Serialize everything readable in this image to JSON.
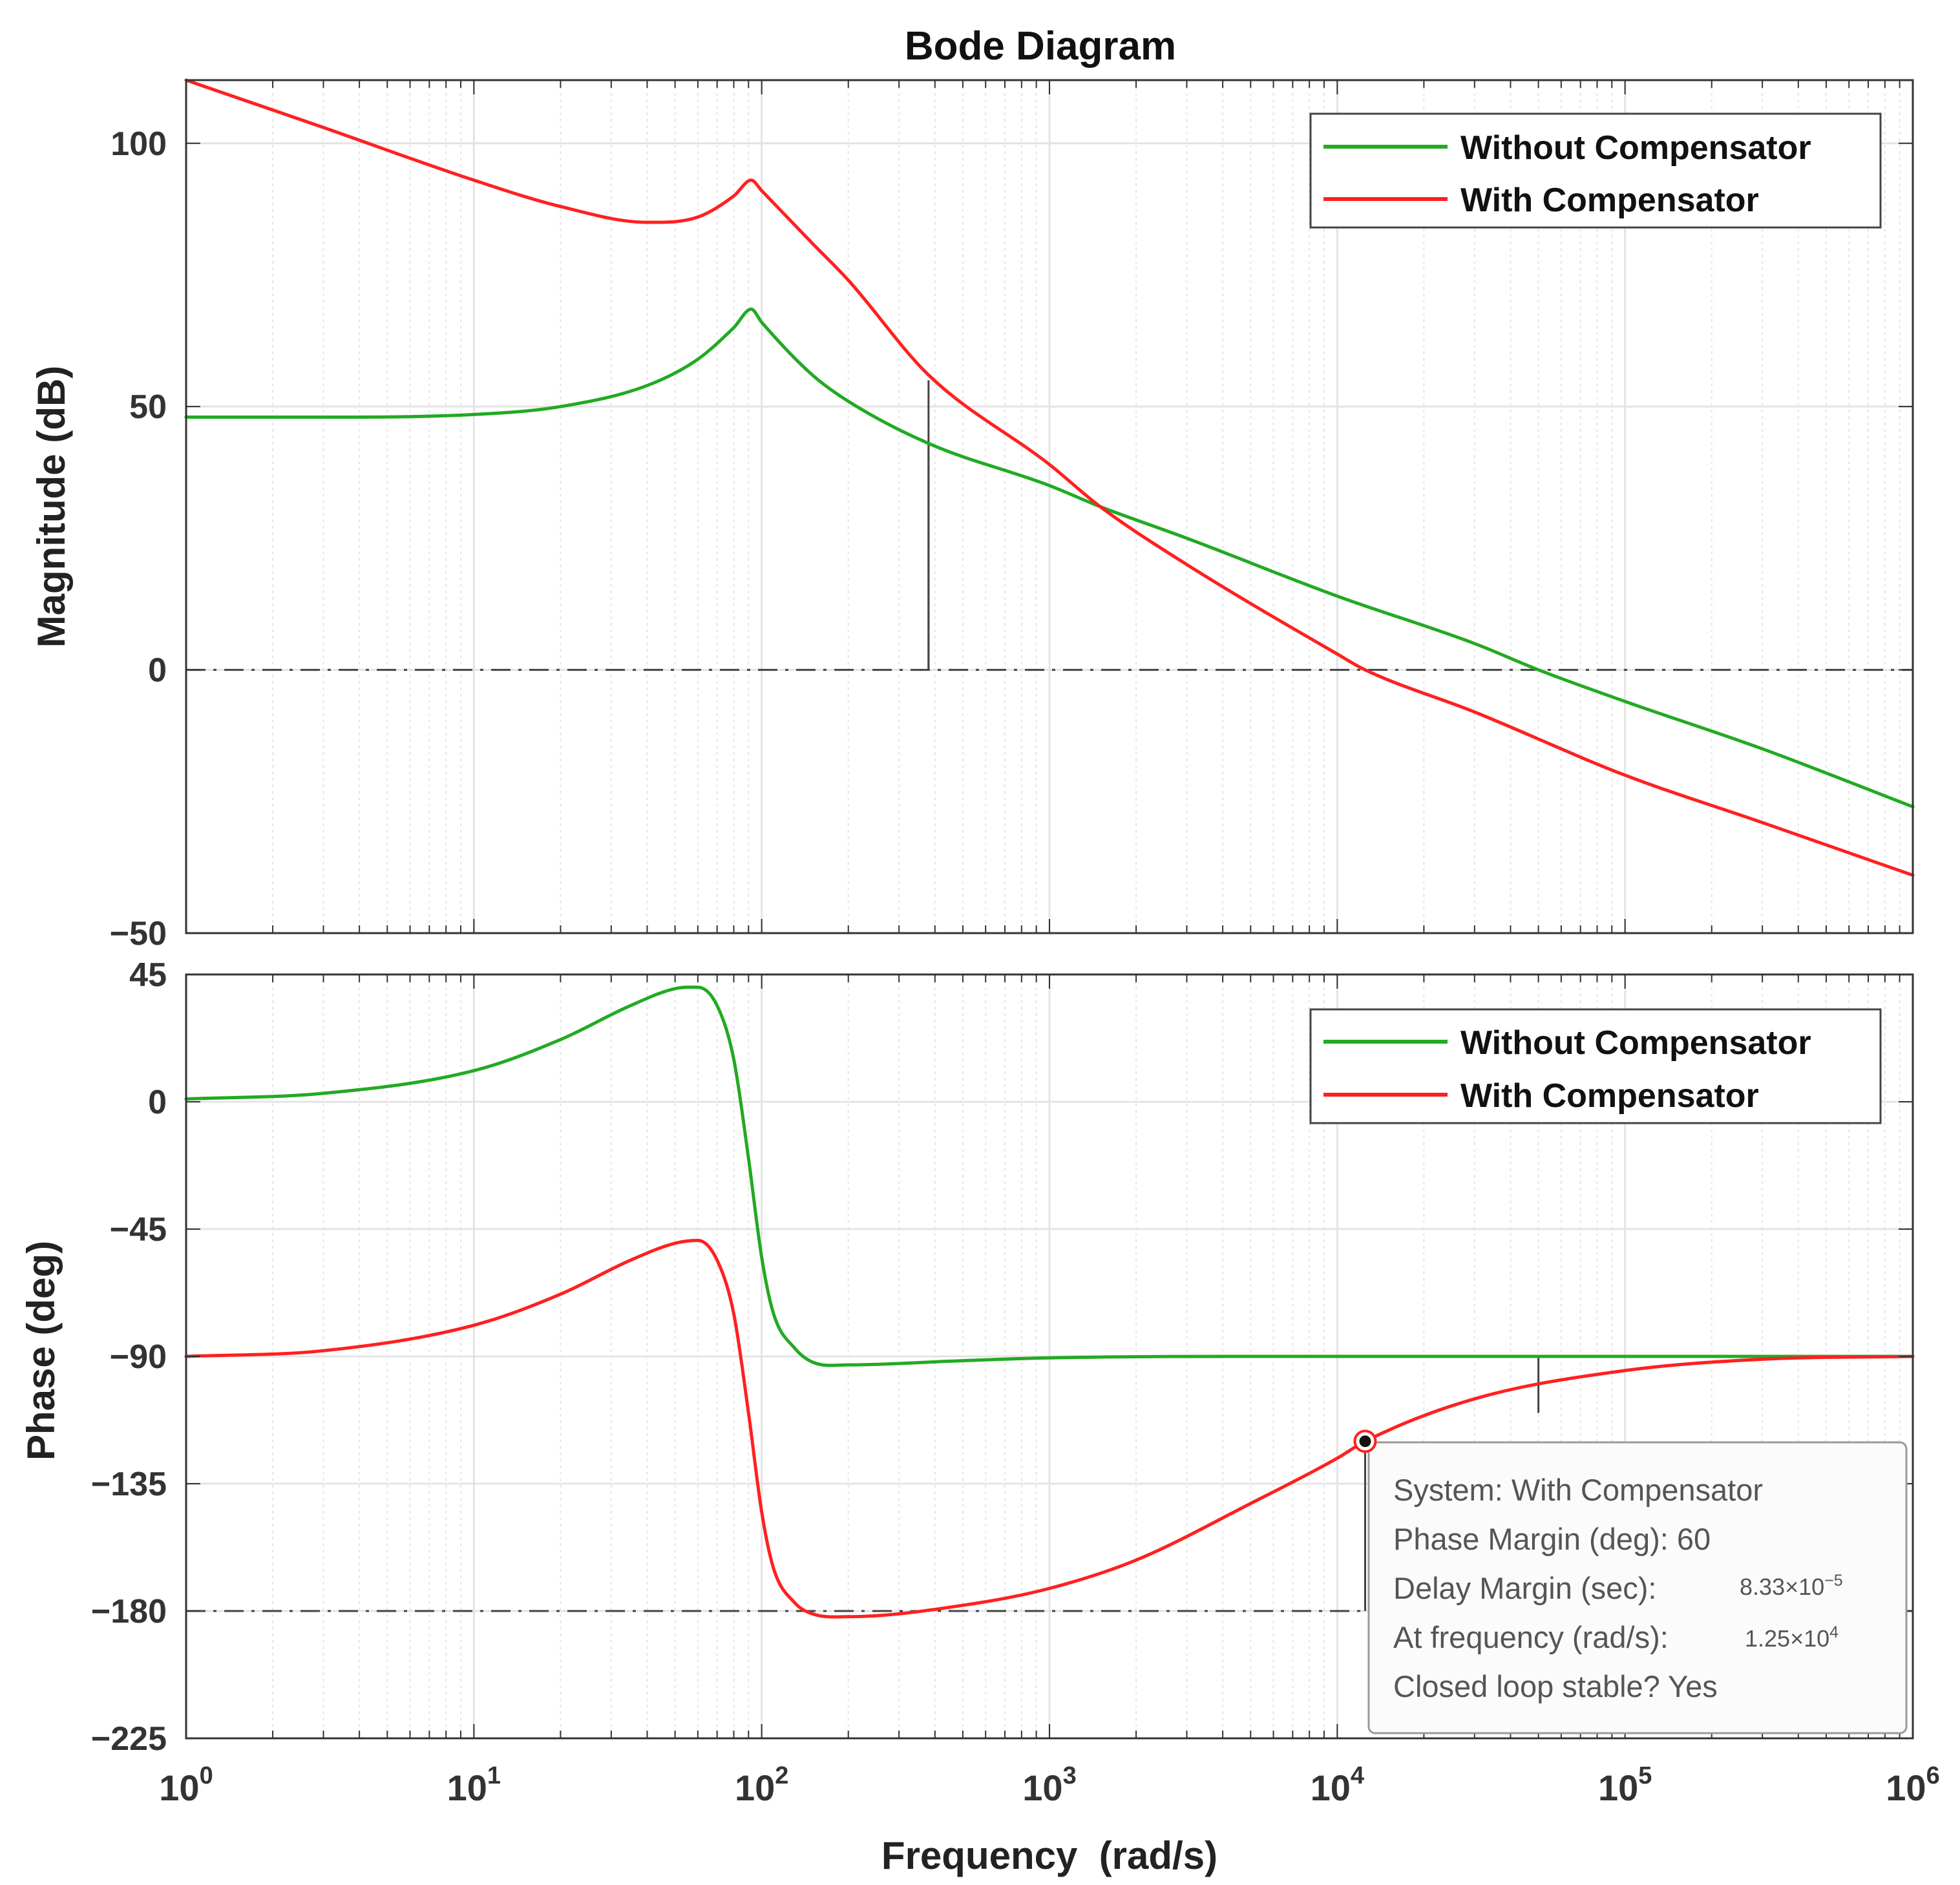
{
  "figure_title": "Bode Diagram",
  "colors": {
    "without_compensator": "#22aa22",
    "with_compensator": "#ff2020",
    "grid": "#e4e4e4",
    "axes": "#333333",
    "reference_line": "#444444",
    "datatip_border": "#9a9a9a",
    "datatip_background": "#fbfbfc"
  },
  "legend": {
    "placement": "top-right",
    "items": [
      "Without Compensator",
      "With Compensator"
    ]
  },
  "datatip": {
    "lines": [
      "System: With Compensator",
      "Phase Margin (deg): 60",
      "Delay Margin (sec):",
      "At frequency (rad/s):",
      "Closed loop stable? Yes"
    ],
    "delay_margin_mantissa": "8.33×10",
    "delay_margin_exponent": "−5",
    "frequency_mantissa": "1.25×10",
    "frequency_exponent": "4",
    "marker_frequency": 12500,
    "marker_phase": -120
  },
  "chart_data": [
    {
      "type": "line",
      "title": "Bode Diagram",
      "panel": "magnitude",
      "xlabel": "Frequency  (rad/s)",
      "ylabel": "Magnitude (dB)",
      "xscale": "log",
      "xlim": [
        1,
        1000000
      ],
      "ylim": [
        -50,
        112
      ],
      "yticks": [
        100,
        50,
        0,
        -50
      ],
      "ytick_labels": [
        "100",
        "50",
        "0",
        "−50"
      ],
      "grid": true,
      "reference_lines": [
        {
          "y": 0,
          "style": "dash-dot"
        }
      ],
      "margin_markers": [
        {
          "series": "With Compensator",
          "x": 380,
          "y_from": 55,
          "y_to": 0
        },
        {
          "series": "Without Compensator",
          "x": 380,
          "y_from": 43,
          "y_to": 0
        }
      ],
      "series": [
        {
          "name": "Without Compensator",
          "points": [
            [
              1,
              48
            ],
            [
              3,
              48
            ],
            [
              10,
              48.5
            ],
            [
              20,
              50
            ],
            [
              40,
              54
            ],
            [
              60,
              59
            ],
            [
              80,
              65
            ],
            [
              92,
              68.5
            ],
            [
              100,
              66
            ],
            [
              150,
              56
            ],
            [
              200,
              51
            ],
            [
              380,
              43
            ],
            [
              1000,
              35
            ],
            [
              1500,
              31
            ],
            [
              3000,
              25
            ],
            [
              10000,
              14
            ],
            [
              30000,
              5
            ],
            [
              50000,
              0
            ],
            [
              100000,
              -6
            ],
            [
              300000,
              -15
            ],
            [
              1000000,
              -26
            ]
          ]
        },
        {
          "name": "With Compensator",
          "points": [
            [
              1,
              112
            ],
            [
              3,
              103
            ],
            [
              10,
              93
            ],
            [
              20,
              88
            ],
            [
              40,
              85
            ],
            [
              60,
              86
            ],
            [
              80,
              90
            ],
            [
              92,
              93
            ],
            [
              100,
              91
            ],
            [
              150,
              81
            ],
            [
              200,
              74
            ],
            [
              380,
              56
            ],
            [
              1000,
              39
            ],
            [
              1500,
              31
            ],
            [
              3000,
              20
            ],
            [
              10000,
              3
            ],
            [
              12500,
              0
            ],
            [
              30000,
              -8
            ],
            [
              100000,
              -20
            ],
            [
              300000,
              -29
            ],
            [
              1000000,
              -39
            ]
          ]
        }
      ]
    },
    {
      "type": "line",
      "panel": "phase",
      "xlabel": "Frequency  (rad/s)",
      "ylabel": "Phase (deg)",
      "xscale": "log",
      "xlim": [
        1,
        1000000
      ],
      "ylim": [
        -225,
        45
      ],
      "yticks": [
        45,
        0,
        -45,
        -90,
        -135,
        -180,
        -225
      ],
      "ytick_labels": [
        "45",
        "0",
        "−45",
        "−90",
        "−135",
        "−180",
        "−225"
      ],
      "xticks": [
        1,
        10,
        100,
        1000,
        10000,
        100000,
        1000000
      ],
      "xtick_exponents": [
        "0",
        "1",
        "2",
        "3",
        "4",
        "5",
        "6"
      ],
      "grid": true,
      "reference_lines": [
        {
          "y": -180,
          "style": "dash-dot"
        }
      ],
      "margin_markers": [
        {
          "series": "With Compensator",
          "x": 12500,
          "y_from": -120,
          "y_to": -180
        },
        {
          "series": "Without Compensator",
          "x": 50000,
          "y_from": -90,
          "y_to": -110
        }
      ],
      "series": [
        {
          "name": "Without Compensator",
          "points": [
            [
              1,
              1
            ],
            [
              3,
              3
            ],
            [
              10,
              11
            ],
            [
              20,
              22
            ],
            [
              35,
              34
            ],
            [
              50,
              40
            ],
            [
              60,
              40.5
            ],
            [
              70,
              34
            ],
            [
              80,
              15
            ],
            [
              90,
              -20
            ],
            [
              100,
              -55
            ],
            [
              110,
              -75
            ],
            [
              130,
              -87
            ],
            [
              150,
              -92
            ],
            [
              200,
              -93
            ],
            [
              500,
              -91.5
            ],
            [
              1000,
              -90.5
            ],
            [
              10000,
              -90
            ],
            [
              1000000,
              -90
            ]
          ]
        },
        {
          "name": "With Compensator",
          "points": [
            [
              1,
              -90
            ],
            [
              3,
              -88
            ],
            [
              10,
              -79
            ],
            [
              20,
              -68
            ],
            [
              35,
              -56
            ],
            [
              50,
              -50
            ],
            [
              60,
              -49
            ],
            [
              70,
              -56
            ],
            [
              80,
              -75
            ],
            [
              90,
              -110
            ],
            [
              100,
              -145
            ],
            [
              110,
              -165
            ],
            [
              130,
              -177
            ],
            [
              150,
              -181
            ],
            [
              200,
              -182
            ],
            [
              500,
              -178
            ],
            [
              1000,
              -172
            ],
            [
              2000,
              -162
            ],
            [
              5000,
              -142
            ],
            [
              10000,
              -126
            ],
            [
              12500,
              -120
            ],
            [
              30000,
              -105
            ],
            [
              100000,
              -95
            ],
            [
              300000,
              -91
            ],
            [
              1000000,
              -90
            ]
          ]
        }
      ]
    }
  ]
}
